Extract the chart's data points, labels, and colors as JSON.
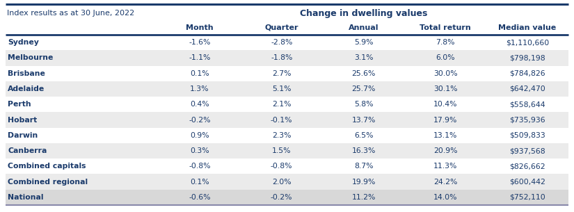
{
  "title": "Change in dwelling values",
  "subtitle": "Index results as at 30 June, 2022",
  "columns": [
    "Month",
    "Quarter",
    "Annual",
    "Total return",
    "Median value"
  ],
  "rows": [
    {
      "name": "Sydney",
      "month": "-1.6%",
      "quarter": "-2.8%",
      "annual": "5.9%",
      "total_return": "7.8%",
      "median": "$1,110,660",
      "bold": false
    },
    {
      "name": "Melbourne",
      "month": "-1.1%",
      "quarter": "-1.8%",
      "annual": "3.1%",
      "total_return": "6.0%",
      "median": "$798,198",
      "bold": false
    },
    {
      "name": "Brisbane",
      "month": "0.1%",
      "quarter": "2.7%",
      "annual": "25.6%",
      "total_return": "30.0%",
      "median": "$784,826",
      "bold": false
    },
    {
      "name": "Adelaide",
      "month": "1.3%",
      "quarter": "5.1%",
      "annual": "25.7%",
      "total_return": "30.1%",
      "median": "$642,470",
      "bold": false
    },
    {
      "name": "Perth",
      "month": "0.4%",
      "quarter": "2.1%",
      "annual": "5.8%",
      "total_return": "10.4%",
      "median": "$558,644",
      "bold": false
    },
    {
      "name": "Hobart",
      "month": "-0.2%",
      "quarter": "-0.1%",
      "annual": "13.7%",
      "total_return": "17.9%",
      "median": "$735,936",
      "bold": false
    },
    {
      "name": "Darwin",
      "month": "0.9%",
      "quarter": "2.3%",
      "annual": "6.5%",
      "total_return": "13.1%",
      "median": "$509,833",
      "bold": false
    },
    {
      "name": "Canberra",
      "month": "0.3%",
      "quarter": "1.5%",
      "annual": "16.3%",
      "total_return": "20.9%",
      "median": "$937,568",
      "bold": false
    },
    {
      "name": "Combined capitals",
      "month": "-0.8%",
      "quarter": "-0.8%",
      "annual": "8.7%",
      "total_return": "11.3%",
      "median": "$826,662",
      "bold": false
    },
    {
      "name": "Combined regional",
      "month": "0.1%",
      "quarter": "2.0%",
      "annual": "19.9%",
      "total_return": "24.2%",
      "median": "$600,442",
      "bold": false
    },
    {
      "name": "National",
      "month": "-0.6%",
      "quarter": "-0.2%",
      "annual": "11.2%",
      "total_return": "14.0%",
      "median": "$752,110",
      "bold": true
    }
  ],
  "row_bgs": [
    "#ffffff",
    "#ebebeb",
    "#ffffff",
    "#ebebeb",
    "#ffffff",
    "#ebebeb",
    "#ffffff",
    "#ebebeb",
    "#ffffff",
    "#ebebeb",
    "#d8d8d8"
  ],
  "header_color": "#1a3a6b",
  "text_color": "#1a3a6b",
  "border_top_color": "#1a3a6b",
  "border_thick_color": "#1a3a6b",
  "border_bottom_color": "#8888aa",
  "fig_width": 8.25,
  "fig_height": 3.05,
  "dpi": 100
}
